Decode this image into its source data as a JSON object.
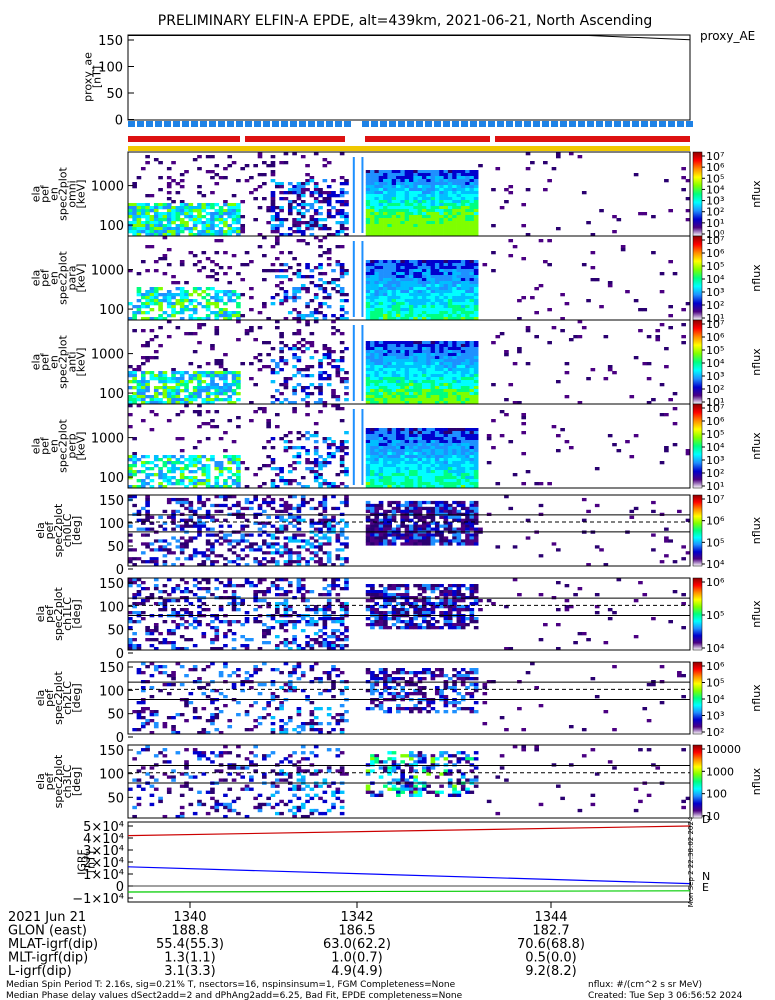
{
  "title": "PRELIMINARY ELFIN-A EPDE, alt=439km, 2021-06-21, North Ascending",
  "colors": {
    "bar_blue": "#1e82e6",
    "bar_red": "#dd1111",
    "bar_yellow": "#f0c800",
    "igrf_N": "#0000ff",
    "igrf_E": "#00cc00",
    "igrf_D": "#cc0000"
  },
  "colorbar": {
    "stops": [
      "#ffffff",
      "#4b0082",
      "#0000cd",
      "#1e90ff",
      "#00ffff",
      "#00ff7f",
      "#7fff00",
      "#ffff00",
      "#ff8c00",
      "#ff0000",
      "#8b0000"
    ]
  },
  "chart_data": [
    {
      "type": "line",
      "ylabel": "proxy_ae\n[nT]",
      "legend": "proxy_AE",
      "ylim": [
        0,
        150
      ],
      "yticks": [
        "150",
        "100",
        "50",
        "0"
      ],
      "series": [
        {
          "name": "proxy_AE",
          "x": [
            0,
            0.82,
            1.0
          ],
          "values": [
            150,
            150,
            142
          ]
        }
      ]
    },
    {
      "type": "heatmap",
      "ylabel": "ela\npef\nen\nspec2plot\nomni\n[keV]",
      "yticks": [
        "1000",
        "100"
      ],
      "cb_label": "nflux",
      "cb_ticks": [
        "10⁷",
        "10⁶",
        "10⁵",
        "10⁴",
        "10³",
        "10²",
        "10¹",
        "10⁰"
      ]
    },
    {
      "type": "heatmap",
      "ylabel": "ela\npef\nen\nspec2plot\npara\n[keV]",
      "yticks": [
        "1000",
        "100"
      ],
      "cb_label": "nflux",
      "cb_ticks": [
        "10⁷",
        "10⁶",
        "10⁵",
        "10⁴",
        "10³",
        "10²",
        "10¹"
      ]
    },
    {
      "type": "heatmap",
      "ylabel": "ela\npef\nen\nspec2plot\nanti\n[keV]",
      "yticks": [
        "1000",
        "100"
      ],
      "cb_label": "nflux",
      "cb_ticks": [
        "10⁷",
        "10⁶",
        "10⁵",
        "10⁴",
        "10³",
        "10²",
        "10¹"
      ]
    },
    {
      "type": "heatmap",
      "ylabel": "ela\npef\nen\nspec2plot\nperp\n[keV]",
      "yticks": [
        "1000",
        "100"
      ],
      "cb_label": "nflux",
      "cb_ticks": [
        "10⁷",
        "10⁶",
        "10⁵",
        "10⁴",
        "10³",
        "10²",
        "10¹"
      ]
    },
    {
      "type": "heatmap",
      "ylabel": "ela\npef\nspec2plot\nch0LC\n[deg]",
      "yticks": [
        "150",
        "100",
        "50",
        "0"
      ],
      "cb_label": "nflux",
      "cb_ticks": [
        "10⁷",
        "10⁶",
        "10⁵",
        "10⁴"
      ]
    },
    {
      "type": "heatmap",
      "ylabel": "ela\npef\nspec2plot\nch1LC\n[deg]",
      "yticks": [
        "150",
        "100",
        "50",
        "0"
      ],
      "cb_label": "nflux",
      "cb_ticks": [
        "10⁶",
        "10⁵",
        "10⁴"
      ]
    },
    {
      "type": "heatmap",
      "ylabel": "ela\npef\nspec2plot\nch2LC\n[deg]",
      "yticks": [
        "150",
        "100",
        "50",
        "0"
      ],
      "cb_label": "nflux",
      "cb_ticks": [
        "10⁶",
        "10⁵",
        "10⁴",
        "10³",
        "10²"
      ]
    },
    {
      "type": "heatmap",
      "ylabel": "ela\npef\nspec2plot\nch3LC\n[deg]",
      "yticks": [
        "150",
        "100",
        "50"
      ],
      "cb_label": "nflux",
      "cb_ticks": [
        "10000",
        "1000",
        "100",
        "10"
      ]
    },
    {
      "type": "line",
      "ylabel": "IGRF\n[nT]",
      "yticks": [
        "5×10⁴",
        "4×10⁴",
        "3×10⁴",
        "2×10⁴",
        "1×10⁴",
        "0",
        "−1×10⁴"
      ],
      "ylim": [
        -10000,
        50000
      ],
      "series": [
        {
          "name": "D",
          "x": [
            0,
            1
          ],
          "values": [
            42000,
            50000
          ]
        },
        {
          "name": "N",
          "x": [
            0,
            1
          ],
          "values": [
            16000,
            2000
          ]
        },
        {
          "name": "E",
          "x": [
            0,
            1
          ],
          "values": [
            -5000,
            -4000
          ]
        }
      ],
      "side_text": "Mon Sep  2 22:38:02 2024"
    }
  ],
  "xaxis": {
    "rows": [
      {
        "label": "2021 Jun 21",
        "values": [
          "1340",
          "1342",
          "1344"
        ]
      },
      {
        "label": "GLON (east)",
        "values": [
          "188.8",
          "186.5",
          "182.7"
        ]
      },
      {
        "label": "MLAT-igrf(dip)",
        "values": [
          "55.4(55.3)",
          "63.0(62.2)",
          "70.6(68.8)"
        ]
      },
      {
        "label": "MLT-igrf(dip)",
        "values": [
          "1.3(1.1)",
          "1.0(0.7)",
          "0.5(0.0)"
        ]
      },
      {
        "label": "L-igrf(dip)",
        "values": [
          "3.1(3.3)",
          "4.9(4.9)",
          "9.2(8.2)"
        ]
      }
    ]
  },
  "footer": {
    "line1_left": "Median Spin Period T: 2.16s, sig=0.21% T, nsectors=16, nspinsinsum=1, FGM Completeness=None",
    "line2_left": "Median Phase delay values dSect2add=2 and dPhAng2add=6.25, Bad Fit, EPDE completeness=None",
    "line1_right": "nflux: #/(cm^2 s sr MeV)",
    "line2_right": "Created: Tue Sep  3 06:56:52 2024"
  }
}
